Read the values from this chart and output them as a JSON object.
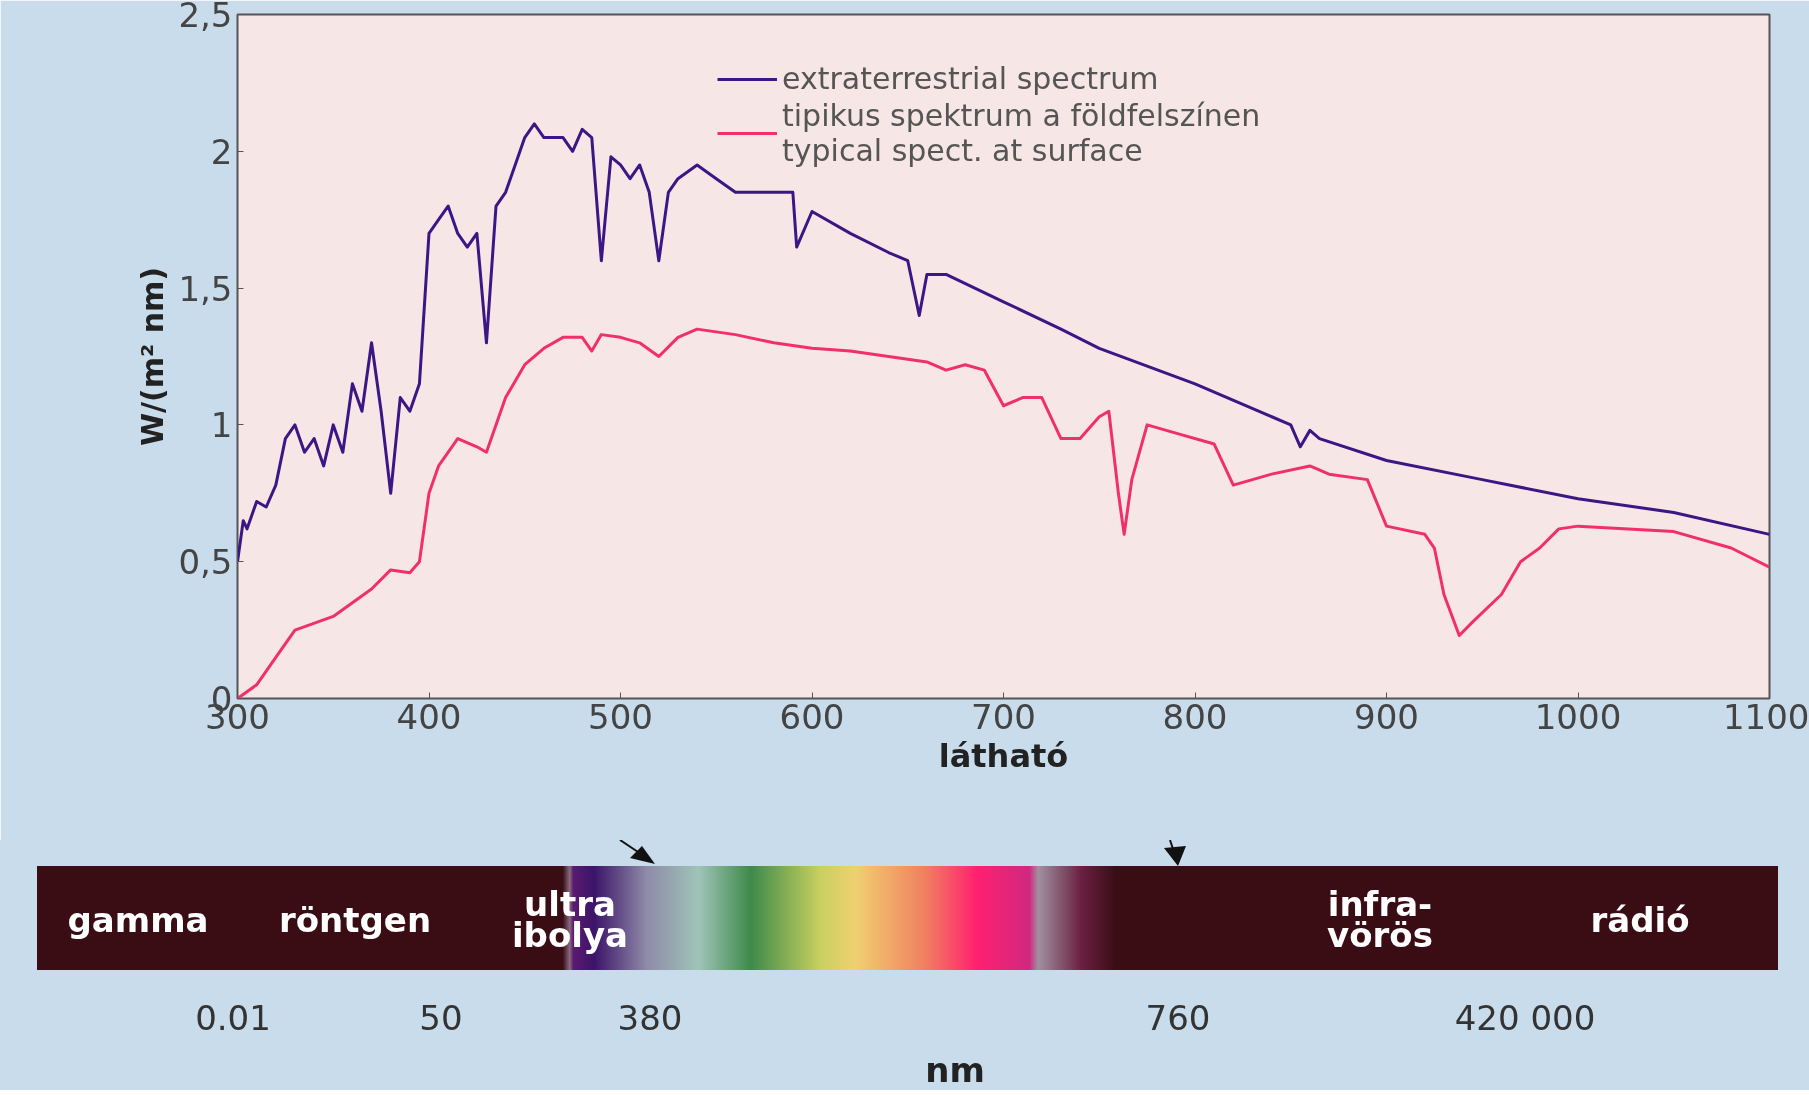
{
  "chart_data": {
    "type": "line",
    "xlabel": "látható",
    "ylabel": "W/(m² nm)",
    "xlim": [
      300,
      1100
    ],
    "xticks": [
      300,
      400,
      500,
      600,
      700,
      800,
      900,
      1000,
      1100
    ],
    "ylim": [
      0,
      2.5
    ],
    "yticks": [
      0,
      {
        "value": 0.5,
        "label": "0,5"
      },
      1,
      {
        "value": 1.5,
        "label": "1,5"
      },
      2,
      {
        "value": 2.5,
        "label": "2,5"
      }
    ],
    "grid": false,
    "legend": "top right",
    "line_style": "solid",
    "marker": "none",
    "series": [
      {
        "name": "extraterrestrial spectrum",
        "color": "#3b1685",
        "x": [
          300,
          303,
          305,
          310,
          315,
          320,
          325,
          330,
          335,
          340,
          345,
          350,
          355,
          360,
          365,
          370,
          375,
          380,
          385,
          390,
          395,
          400,
          405,
          410,
          415,
          420,
          425,
          430,
          435,
          440,
          445,
          450,
          455,
          460,
          470,
          475,
          480,
          485,
          490,
          495,
          500,
          505,
          510,
          515,
          520,
          525,
          530,
          540,
          550,
          560,
          570,
          580,
          590,
          592,
          600,
          620,
          640,
          650,
          656,
          660,
          670,
          700,
          730,
          750,
          800,
          850,
          855,
          860,
          865,
          900,
          950,
          1000,
          1050,
          1100
        ],
        "values": [
          0.5,
          0.65,
          0.62,
          0.72,
          0.7,
          0.78,
          0.95,
          1.0,
          0.9,
          0.95,
          0.85,
          1.0,
          0.9,
          1.15,
          1.05,
          1.3,
          1.05,
          0.75,
          1.1,
          1.05,
          1.15,
          1.7,
          1.75,
          1.8,
          1.7,
          1.65,
          1.7,
          1.3,
          1.8,
          1.85,
          1.95,
          2.05,
          2.1,
          2.05,
          2.05,
          2.0,
          2.08,
          2.05,
          1.6,
          1.98,
          1.95,
          1.9,
          1.95,
          1.85,
          1.6,
          1.85,
          1.9,
          1.95,
          1.9,
          1.85,
          1.85,
          1.85,
          1.85,
          1.65,
          1.78,
          1.7,
          1.63,
          1.6,
          1.4,
          1.55,
          1.55,
          1.45,
          1.35,
          1.28,
          1.15,
          1.0,
          0.92,
          0.98,
          0.95,
          0.87,
          0.8,
          0.73,
          0.68,
          0.6
        ]
      },
      {
        "name": "tipikus spektrum a földfelszínen\ntypical spect. at surface",
        "color": "#f0306a",
        "x": [
          300,
          310,
          320,
          330,
          350,
          360,
          370,
          380,
          390,
          395,
          400,
          405,
          415,
          425,
          430,
          440,
          450,
          460,
          470,
          480,
          485,
          490,
          500,
          510,
          520,
          530,
          540,
          560,
          580,
          600,
          620,
          640,
          660,
          670,
          680,
          690,
          700,
          710,
          720,
          730,
          740,
          750,
          755,
          760,
          763,
          767,
          775,
          790,
          810,
          820,
          840,
          860,
          870,
          890,
          900,
          920,
          925,
          930,
          938,
          945,
          960,
          970,
          980,
          990,
          1000,
          1050,
          1080,
          1100
        ],
        "values": [
          0.0,
          0.05,
          0.15,
          0.25,
          0.3,
          0.35,
          0.4,
          0.47,
          0.46,
          0.5,
          0.75,
          0.85,
          0.95,
          0.92,
          0.9,
          1.1,
          1.22,
          1.28,
          1.32,
          1.32,
          1.27,
          1.33,
          1.32,
          1.3,
          1.25,
          1.32,
          1.35,
          1.33,
          1.3,
          1.28,
          1.27,
          1.25,
          1.23,
          1.2,
          1.22,
          1.2,
          1.07,
          1.1,
          1.1,
          0.95,
          0.95,
          1.03,
          1.05,
          0.75,
          0.6,
          0.8,
          1.0,
          0.97,
          0.93,
          0.78,
          0.82,
          0.85,
          0.82,
          0.8,
          0.63,
          0.6,
          0.55,
          0.38,
          0.23,
          0.28,
          0.38,
          0.5,
          0.55,
          0.62,
          0.63,
          0.61,
          0.55,
          0.48
        ]
      }
    ],
    "annotations": [
      "gamma",
      "röntgen",
      "ultra\nibolya",
      "infra-\nvörös",
      "rádió",
      "0.01",
      "50",
      "380",
      "760",
      "420 000",
      "nm"
    ]
  }
}
